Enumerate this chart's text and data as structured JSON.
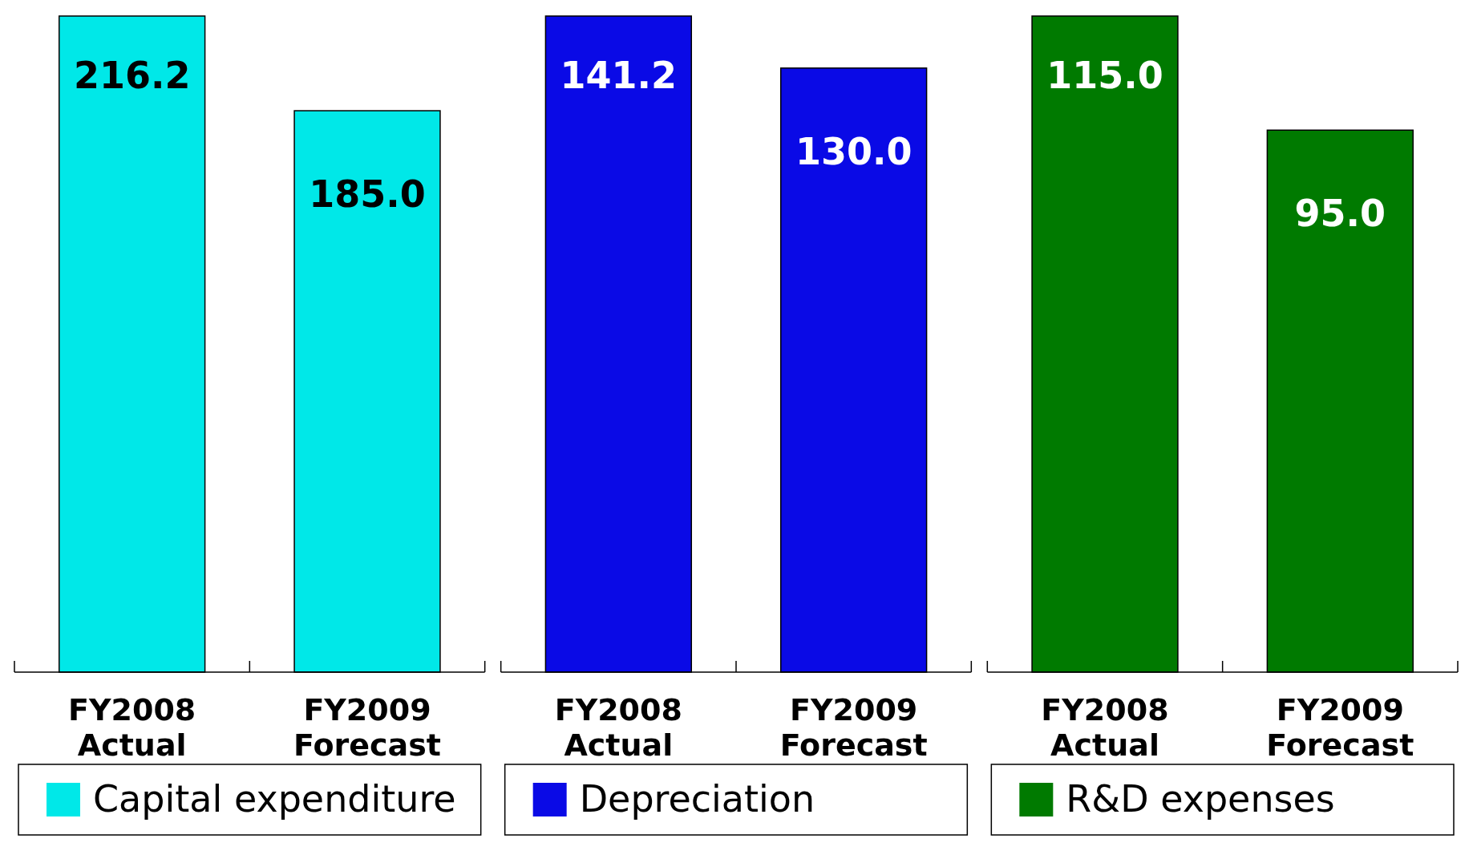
{
  "chart_data": [
    {
      "type": "bar",
      "categories": [
        "FY2008\nActual",
        "FY2009\nForecast"
      ],
      "series": [
        {
          "name": "Capital expenditure",
          "color": "#00e8e8",
          "values": [
            216.2,
            185.0
          ],
          "value_labels": [
            "216.2",
            "185.0"
          ]
        }
      ],
      "legend": "bottom",
      "tick_labels": "x"
    },
    {
      "type": "bar",
      "categories": [
        "FY2008\nActual",
        "FY2009\nForecast"
      ],
      "series": [
        {
          "name": "Depreciation",
          "color": "#0a0ae6",
          "values": [
            141.2,
            130.0
          ],
          "value_labels": [
            "141.2",
            "130.0"
          ]
        }
      ],
      "legend": "bottom",
      "tick_labels": "x"
    },
    {
      "type": "bar",
      "categories": [
        "FY2008\nActual",
        "FY2009\nForecast"
      ],
      "series": [
        {
          "name": "R&D expenses",
          "color": "#007a00",
          "values": [
            115.0,
            95.0
          ],
          "value_labels": [
            "115.0",
            "95.0"
          ]
        }
      ],
      "legend": "bottom",
      "tick_labels": "x"
    }
  ]
}
